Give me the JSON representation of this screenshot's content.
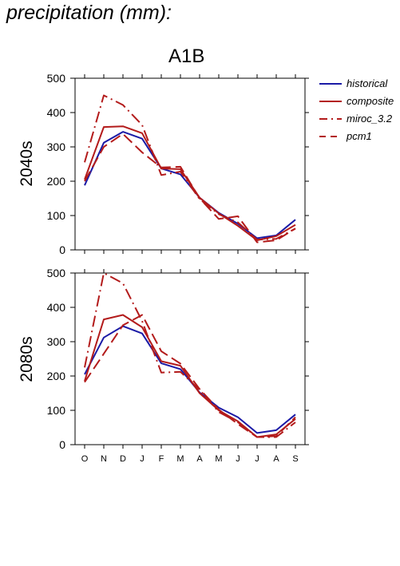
{
  "page_title": "precipitation (mm):",
  "scenario_title": "A1B",
  "colors": {
    "historical": "#1a1aa6",
    "models": "#b31b1b",
    "axis": "#000000"
  },
  "chart_data": [
    {
      "type": "line",
      "panel_label": "2040s",
      "x": [
        "O",
        "N",
        "D",
        "J",
        "F",
        "M",
        "A",
        "M",
        "J",
        "J",
        "A",
        "S"
      ],
      "ylim": [
        0,
        500
      ],
      "yticks": [
        0,
        100,
        200,
        300,
        400,
        500
      ],
      "grid": false,
      "legend_position": "right",
      "series": [
        {
          "name": "historical",
          "dash": "solid",
          "color": "#1a1aa6",
          "values": [
            188,
            312,
            344,
            324,
            237,
            220,
            152,
            108,
            76,
            34,
            42,
            88
          ]
        },
        {
          "name": "composite",
          "dash": "solid",
          "color": "#b31b1b",
          "values": [
            205,
            358,
            360,
            340,
            237,
            235,
            152,
            106,
            70,
            28,
            40,
            73
          ]
        },
        {
          "name": "miroc_3.2",
          "dash": "dashdot",
          "color": "#b31b1b",
          "values": [
            255,
            450,
            422,
            364,
            218,
            228,
            148,
            104,
            80,
            30,
            32,
            62
          ]
        },
        {
          "name": "pcm1",
          "dash": "dashed",
          "color": "#b31b1b",
          "values": [
            200,
            300,
            338,
            284,
            240,
            242,
            150,
            90,
            98,
            22,
            28,
            62
          ]
        }
      ]
    },
    {
      "type": "line",
      "panel_label": "2080s",
      "x": [
        "O",
        "N",
        "D",
        "J",
        "F",
        "M",
        "A",
        "M",
        "J",
        "J",
        "A",
        "S"
      ],
      "ylim": [
        0,
        500
      ],
      "yticks": [
        0,
        100,
        200,
        300,
        400,
        500
      ],
      "grid": false,
      "legend_position": "none",
      "series": [
        {
          "name": "historical",
          "dash": "solid",
          "color": "#1a1aa6",
          "values": [
            205,
            312,
            345,
            324,
            237,
            220,
            152,
            108,
            80,
            34,
            42,
            88
          ]
        },
        {
          "name": "composite",
          "dash": "solid",
          "color": "#b31b1b",
          "values": [
            185,
            365,
            378,
            342,
            243,
            230,
            150,
            100,
            68,
            22,
            30,
            75
          ]
        },
        {
          "name": "miroc_3.2",
          "dash": "dashdot",
          "color": "#b31b1b",
          "values": [
            225,
            500,
            470,
            360,
            210,
            212,
            160,
            95,
            65,
            22,
            22,
            65
          ]
        },
        {
          "name": "pcm1",
          "dash": "dashed",
          "color": "#b31b1b",
          "values": [
            182,
            265,
            348,
            378,
            272,
            236,
            162,
            102,
            60,
            22,
            25,
            80
          ]
        }
      ]
    }
  ]
}
